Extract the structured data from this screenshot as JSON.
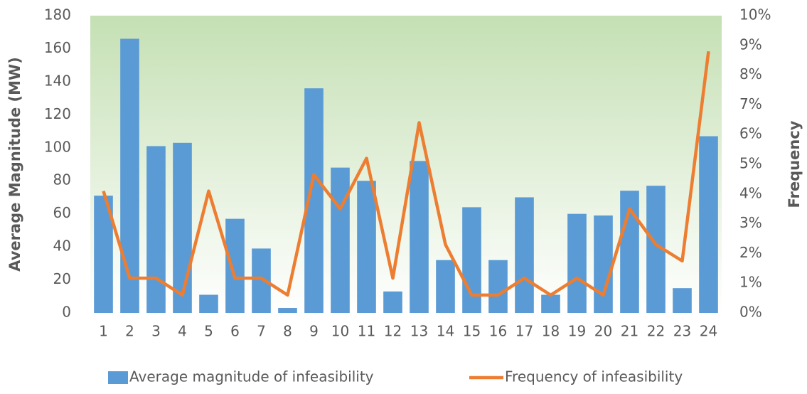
{
  "chart_data": {
    "type": "bar-line",
    "ylabel": "Average Magnitude (MW)",
    "y2label": "Frequency",
    "categories": [
      "1",
      "2",
      "3",
      "4",
      "5",
      "6",
      "7",
      "8",
      "9",
      "10",
      "11",
      "12",
      "13",
      "14",
      "15",
      "16",
      "17",
      "18",
      "19",
      "20",
      "21",
      "22",
      "23",
      "24"
    ],
    "series": [
      {
        "name": "Average magnitude of infeasibility",
        "type": "bar",
        "color": "#5b9bd5",
        "values": [
          71,
          166,
          101,
          103,
          11,
          57,
          39,
          3,
          136,
          88,
          80,
          13,
          92,
          32,
          64,
          32,
          70,
          11,
          60,
          59,
          74,
          77,
          15,
          107
        ]
      },
      {
        "name": "Frequency of infeasibility",
        "type": "line",
        "color": "#ed7d31",
        "axis": "y2",
        "values": [
          4.1,
          1.17,
          1.17,
          0.6,
          4.1,
          1.17,
          1.17,
          0.6,
          4.65,
          3.5,
          5.2,
          1.17,
          6.4,
          2.3,
          0.6,
          0.6,
          1.17,
          0.6,
          1.17,
          0.6,
          3.5,
          2.3,
          1.75,
          8.8
        ]
      }
    ],
    "ylim": [
      0,
      180
    ],
    "yticks": [
      0,
      20,
      40,
      60,
      80,
      100,
      120,
      140,
      160,
      180
    ],
    "y2lim": [
      0,
      10
    ],
    "y2ticks": [
      {
        "value": 0,
        "label": "0%"
      },
      {
        "value": 1,
        "label": "1%"
      },
      {
        "value": 2,
        "label": "2%"
      },
      {
        "value": 3,
        "label": "3%"
      },
      {
        "value": 4,
        "label": "4%"
      },
      {
        "value": 5,
        "label": "5%"
      },
      {
        "value": 6,
        "label": "6%"
      },
      {
        "value": 7,
        "label": "7%"
      },
      {
        "value": 8,
        "label": "8%"
      },
      {
        "value": 9,
        "label": "9%"
      },
      {
        "value": 10,
        "label": "10%"
      }
    ],
    "legend": "bottom"
  }
}
